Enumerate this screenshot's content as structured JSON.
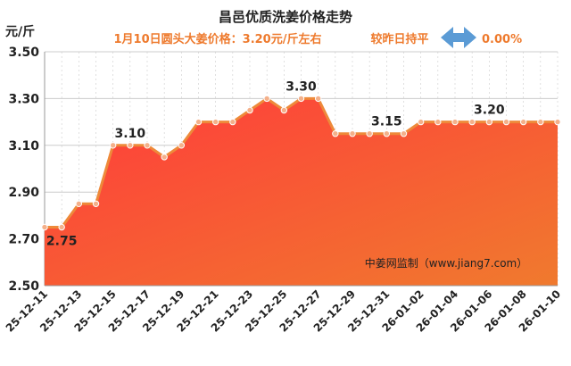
{
  "chart_data": {
    "type": "area",
    "title": "昌邑优质洗姜价格走势",
    "subtitle_left": "1月10日圆头大姜价格：3.20元/斤左右",
    "subtitle_right_label": "较昨日持平",
    "change_value": "0.00%",
    "unit_label": "元/斤",
    "source": "中姜网监制（www.jiang7.com）",
    "ylim": [
      2.5,
      3.5
    ],
    "yticks": [
      "2.50",
      "2.70",
      "2.90",
      "3.10",
      "3.30",
      "3.50"
    ],
    "x": [
      "25-12-11",
      "25-12-12",
      "25-12-13",
      "25-12-14",
      "25-12-15",
      "25-12-16",
      "25-12-17",
      "25-12-18",
      "25-12-19",
      "25-12-20",
      "25-12-21",
      "25-12-22",
      "25-12-23",
      "25-12-24",
      "25-12-25",
      "25-12-26",
      "25-12-27",
      "25-12-28",
      "25-12-29",
      "25-12-30",
      "25-12-31",
      "26-01-01",
      "26-01-02",
      "26-01-03",
      "26-01-04",
      "26-01-05",
      "26-01-06",
      "26-01-07",
      "26-01-08",
      "26-01-09",
      "26-01-10"
    ],
    "xtick_labels": [
      "25-12-11",
      "25-12-13",
      "25-12-15",
      "25-12-17",
      "25-12-19",
      "25-12-21",
      "25-12-23",
      "25-12-25",
      "25-12-27",
      "25-12-29",
      "25-12-31",
      "26-01-02",
      "26-01-04",
      "26-01-06",
      "26-01-08",
      "26-01-10"
    ],
    "values": [
      2.75,
      2.75,
      2.85,
      2.85,
      3.1,
      3.1,
      3.1,
      3.05,
      3.1,
      3.2,
      3.2,
      3.2,
      3.25,
      3.3,
      3.25,
      3.3,
      3.3,
      3.15,
      3.15,
      3.15,
      3.15,
      3.15,
      3.2,
      3.2,
      3.2,
      3.2,
      3.2,
      3.2,
      3.2,
      3.2,
      3.2
    ],
    "data_labels": [
      {
        "index": 1,
        "text": "2.75"
      },
      {
        "index": 5,
        "text": "3.10"
      },
      {
        "index": 15,
        "text": "3.30"
      },
      {
        "index": 20,
        "text": "3.15"
      },
      {
        "index": 26,
        "text": "3.20"
      }
    ],
    "grid": true,
    "colors": {
      "line": "#ee8a3a",
      "marker": "#f4b08a",
      "fill_top": "#ff3b3b",
      "fill_bottom": "#f07a2e",
      "grid": "#cccccc",
      "plot_bg": "#ffffff",
      "arrow": "#5b9bd5"
    }
  }
}
